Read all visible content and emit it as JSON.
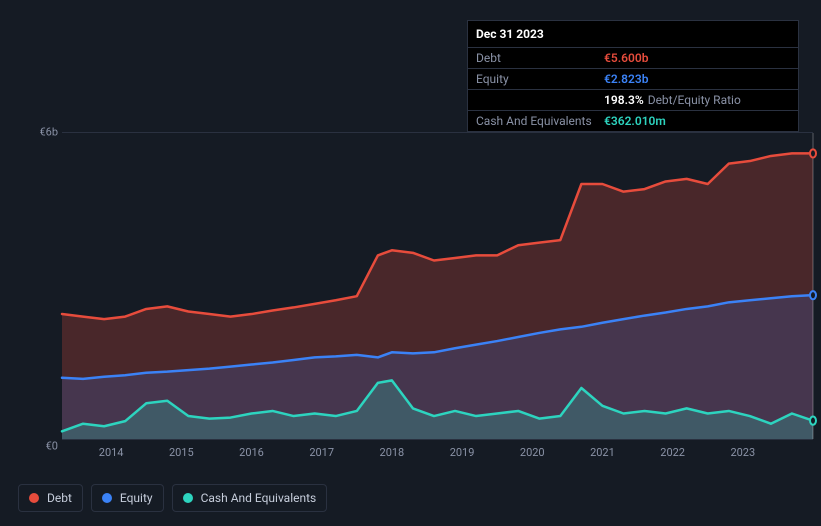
{
  "chart": {
    "type": "area-line",
    "background_color": "#151b24",
    "grid_color": "#2a3140",
    "axis_text_color": "#8a92a6",
    "yaxis": {
      "labels": [
        "€0",
        "€6b"
      ],
      "min": 0,
      "max": 6,
      "unit": "b€"
    },
    "xaxis": {
      "labels": [
        "2014",
        "2015",
        "2016",
        "2017",
        "2018",
        "2019",
        "2020",
        "2021",
        "2022",
        "2023"
      ],
      "min": 2013.3,
      "max": 2024.0
    },
    "cursor_x": 2024.0,
    "series": {
      "debt": {
        "label": "Debt",
        "color": "#e74c3c",
        "fill_opacity": 0.25,
        "line_width": 2.5,
        "data": [
          [
            2013.3,
            2.45
          ],
          [
            2013.6,
            2.4
          ],
          [
            2013.9,
            2.35
          ],
          [
            2014.2,
            2.4
          ],
          [
            2014.5,
            2.55
          ],
          [
            2014.8,
            2.6
          ],
          [
            2015.1,
            2.5
          ],
          [
            2015.4,
            2.45
          ],
          [
            2015.7,
            2.4
          ],
          [
            2016.0,
            2.45
          ],
          [
            2016.3,
            2.52
          ],
          [
            2016.6,
            2.58
          ],
          [
            2016.9,
            2.65
          ],
          [
            2017.2,
            2.72
          ],
          [
            2017.5,
            2.8
          ],
          [
            2017.8,
            3.6
          ],
          [
            2018.0,
            3.7
          ],
          [
            2018.3,
            3.65
          ],
          [
            2018.6,
            3.5
          ],
          [
            2018.9,
            3.55
          ],
          [
            2019.2,
            3.6
          ],
          [
            2019.5,
            3.6
          ],
          [
            2019.8,
            3.8
          ],
          [
            2020.1,
            3.85
          ],
          [
            2020.4,
            3.9
          ],
          [
            2020.7,
            5.0
          ],
          [
            2021.0,
            5.0
          ],
          [
            2021.3,
            4.85
          ],
          [
            2021.6,
            4.9
          ],
          [
            2021.9,
            5.05
          ],
          [
            2022.2,
            5.1
          ],
          [
            2022.5,
            5.0
          ],
          [
            2022.8,
            5.4
          ],
          [
            2023.1,
            5.45
          ],
          [
            2023.4,
            5.55
          ],
          [
            2023.7,
            5.6
          ],
          [
            2024.0,
            5.6
          ]
        ]
      },
      "equity": {
        "label": "Equity",
        "color": "#3b82f6",
        "fill_opacity": 0.18,
        "line_width": 2.5,
        "data": [
          [
            2013.3,
            1.2
          ],
          [
            2013.6,
            1.18
          ],
          [
            2013.9,
            1.22
          ],
          [
            2014.2,
            1.25
          ],
          [
            2014.5,
            1.3
          ],
          [
            2014.8,
            1.32
          ],
          [
            2015.1,
            1.35
          ],
          [
            2015.4,
            1.38
          ],
          [
            2015.7,
            1.42
          ],
          [
            2016.0,
            1.46
          ],
          [
            2016.3,
            1.5
          ],
          [
            2016.6,
            1.55
          ],
          [
            2016.9,
            1.6
          ],
          [
            2017.2,
            1.62
          ],
          [
            2017.5,
            1.65
          ],
          [
            2017.8,
            1.6
          ],
          [
            2018.0,
            1.7
          ],
          [
            2018.3,
            1.68
          ],
          [
            2018.6,
            1.7
          ],
          [
            2018.9,
            1.78
          ],
          [
            2019.2,
            1.85
          ],
          [
            2019.5,
            1.92
          ],
          [
            2019.8,
            2.0
          ],
          [
            2020.1,
            2.08
          ],
          [
            2020.4,
            2.15
          ],
          [
            2020.7,
            2.2
          ],
          [
            2021.0,
            2.28
          ],
          [
            2021.3,
            2.35
          ],
          [
            2021.6,
            2.42
          ],
          [
            2021.9,
            2.48
          ],
          [
            2022.2,
            2.55
          ],
          [
            2022.5,
            2.6
          ],
          [
            2022.8,
            2.68
          ],
          [
            2023.1,
            2.72
          ],
          [
            2023.4,
            2.76
          ],
          [
            2023.7,
            2.8
          ],
          [
            2024.0,
            2.82
          ]
        ]
      },
      "cash": {
        "label": "Cash And Equivalents",
        "color": "#2dd4bf",
        "fill_opacity": 0.22,
        "line_width": 2.5,
        "data": [
          [
            2013.3,
            0.15
          ],
          [
            2013.6,
            0.3
          ],
          [
            2013.9,
            0.25
          ],
          [
            2014.2,
            0.35
          ],
          [
            2014.5,
            0.7
          ],
          [
            2014.8,
            0.75
          ],
          [
            2015.1,
            0.45
          ],
          [
            2015.4,
            0.4
          ],
          [
            2015.7,
            0.42
          ],
          [
            2016.0,
            0.5
          ],
          [
            2016.3,
            0.55
          ],
          [
            2016.6,
            0.45
          ],
          [
            2016.9,
            0.5
          ],
          [
            2017.2,
            0.45
          ],
          [
            2017.5,
            0.55
          ],
          [
            2017.8,
            1.1
          ],
          [
            2018.0,
            1.15
          ],
          [
            2018.3,
            0.6
          ],
          [
            2018.6,
            0.45
          ],
          [
            2018.9,
            0.55
          ],
          [
            2019.2,
            0.45
          ],
          [
            2019.5,
            0.5
          ],
          [
            2019.8,
            0.55
          ],
          [
            2020.1,
            0.4
          ],
          [
            2020.4,
            0.45
          ],
          [
            2020.7,
            1.0
          ],
          [
            2021.0,
            0.65
          ],
          [
            2021.3,
            0.5
          ],
          [
            2021.6,
            0.55
          ],
          [
            2021.9,
            0.5
          ],
          [
            2022.2,
            0.6
          ],
          [
            2022.5,
            0.5
          ],
          [
            2022.8,
            0.55
          ],
          [
            2023.1,
            0.45
          ],
          [
            2023.4,
            0.3
          ],
          [
            2023.7,
            0.5
          ],
          [
            2024.0,
            0.36
          ]
        ]
      }
    },
    "tooltip": {
      "title": "Dec 31 2023",
      "rows": [
        {
          "key": "Debt",
          "val": "€5.600b",
          "color": "#e74c3c"
        },
        {
          "key": "Equity",
          "val": "€2.823b",
          "color": "#3b82f6"
        },
        {
          "key": "",
          "val": "198.3%",
          "sub": "Debt/Equity Ratio",
          "color": "#ffffff"
        },
        {
          "key": "Cash And Equivalents",
          "val": "€362.010m",
          "color": "#2dd4bf"
        }
      ]
    },
    "legend": [
      {
        "label": "Debt",
        "color": "#e74c3c"
      },
      {
        "label": "Equity",
        "color": "#3b82f6"
      },
      {
        "label": "Cash And Equivalents",
        "color": "#2dd4bf"
      }
    ]
  }
}
